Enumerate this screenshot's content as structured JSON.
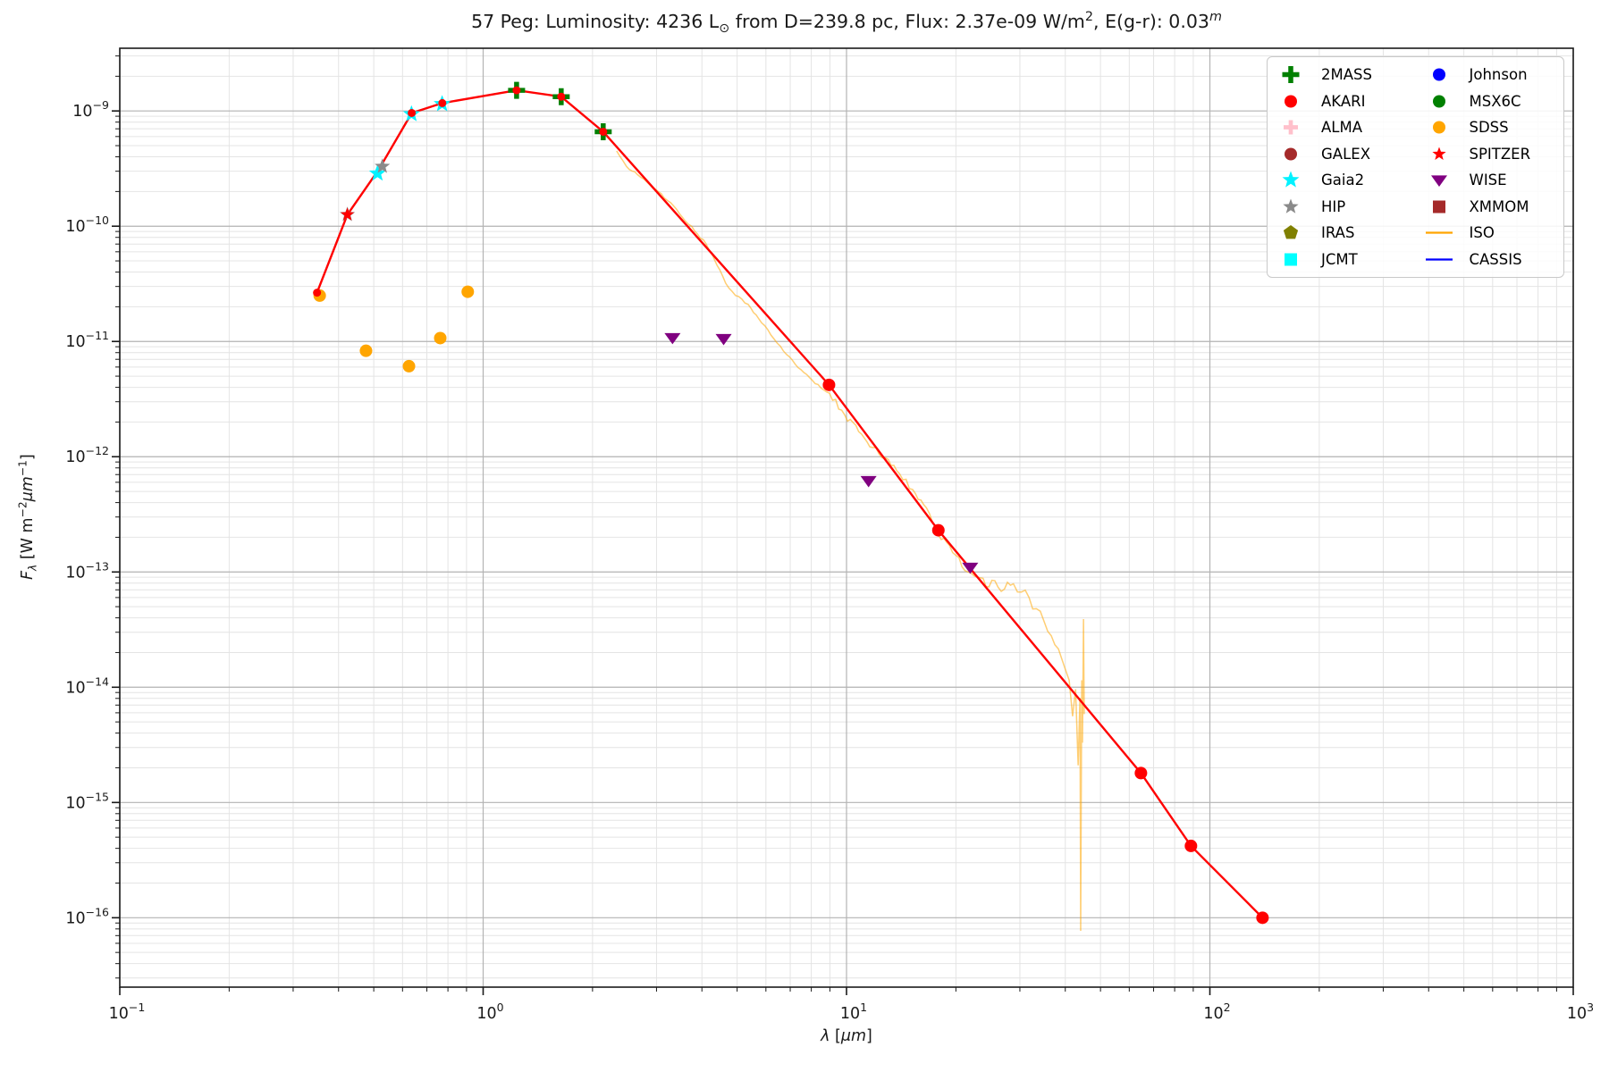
{
  "chart_data": {
    "type": "scatter",
    "title": "57 Peg:  Luminosity: 4236 L_sun from D=239.8 pc, Flux: 2.37e-09 W/m^2, E(g-r): 0.03^m",
    "title_segments": [
      {
        "t": "57 Peg:  Luminosity: 4236 L",
        "s": ""
      },
      {
        "t": "⊙",
        "s": "sub"
      },
      {
        "t": " from D=239.8 pc, Flux: 2.37e-09 W/m",
        "s": ""
      },
      {
        "t": "2",
        "s": "sup"
      },
      {
        "t": ", E(g-r): 0.03",
        "s": ""
      },
      {
        "t": "m",
        "s": "supi"
      }
    ],
    "xlabel": "lambda [micron]",
    "xlabel_segments": [
      {
        "t": "λ",
        "s": "i"
      },
      {
        "t": " [",
        "s": ""
      },
      {
        "t": "μm",
        "s": "i"
      },
      {
        "t": "]",
        "s": ""
      }
    ],
    "ylabel": "F_lambda [W m^-2 um^-1]",
    "ylabel_segments": [
      {
        "t": "F",
        "s": "i"
      },
      {
        "t": "λ",
        "s": "subi"
      },
      {
        "t": " [W m",
        "s": ""
      },
      {
        "t": "−2",
        "s": "sup"
      },
      {
        "t": "μm",
        "s": "i"
      },
      {
        "t": "−1",
        "s": "sup"
      },
      {
        "t": "]",
        "s": ""
      }
    ],
    "xscale": "log",
    "yscale": "log",
    "xlim": [
      0.1,
      1000
    ],
    "ylim": [
      2.5e-17,
      3.5e-09
    ],
    "x_tick_exponents": [
      -1,
      0,
      1,
      2,
      3
    ],
    "y_tick_exponents": [
      -9,
      -10,
      -11,
      -12,
      -13,
      -14,
      -15,
      -16
    ],
    "grid": "both",
    "legend_position": "upper right",
    "legend_columns": [
      [
        "2MASS",
        "AKARI",
        "ALMA",
        "GALEX",
        "Gaia2",
        "HIP",
        "IRAS",
        "JCMT"
      ],
      [
        "Johnson",
        "MSX6C",
        "SDSS",
        "SPITZER",
        "WISE",
        "XMMOM",
        "ISO",
        "CASSIS"
      ]
    ],
    "colors": {
      "grid_major": "#b3b3b3",
      "grid_minor": "#e4e4e4",
      "spine": "#1a1a1a",
      "model_line": "#ff0000",
      "iso_line": "#ffa500"
    },
    "series": [
      {
        "name": "model-fit",
        "kind": "line",
        "color": "#ff0000",
        "width": 2.4,
        "in_legend": false,
        "points": [
          [
            0.349,
            2.65e-11
          ],
          [
            0.423,
            1.26e-10
          ],
          [
            0.516,
            3.1e-10
          ],
          [
            0.636,
            9.6e-10
          ],
          [
            0.772,
            1.17e-09
          ],
          [
            1.236,
            1.51e-09
          ],
          [
            1.64,
            1.33e-09
          ],
          [
            2.14,
            6.6e-10
          ],
          [
            8.95,
            4.2e-12
          ],
          [
            17.9,
            2.3e-13
          ],
          [
            64.6,
            1.8e-15
          ],
          [
            88.7,
            4.2e-16
          ],
          [
            139.6,
            1e-16
          ]
        ]
      },
      {
        "name": "model-points",
        "kind": "scatter",
        "marker": "circle",
        "color": "#ff0000",
        "size": 9,
        "in_legend": false,
        "points": [
          [
            0.349,
            2.65e-11
          ],
          [
            0.636,
            9.6e-10
          ],
          [
            0.772,
            1.17e-09
          ],
          [
            1.236,
            1.51e-09
          ],
          [
            1.64,
            1.33e-09
          ],
          [
            2.14,
            6.6e-10
          ]
        ]
      },
      {
        "name": "2MASS",
        "kind": "scatter",
        "marker": "plus",
        "color": "#008000",
        "size": 19,
        "points": [
          [
            1.236,
            1.51e-09
          ],
          [
            1.64,
            1.33e-09
          ],
          [
            2.14,
            6.6e-10
          ]
        ]
      },
      {
        "name": "AKARI",
        "kind": "scatter",
        "marker": "circle",
        "color": "#ff0000",
        "size": 14,
        "points": [
          [
            8.95,
            4.2e-12
          ],
          [
            17.9,
            2.3e-13
          ],
          [
            64.6,
            1.8e-15
          ],
          [
            88.7,
            4.2e-16
          ],
          [
            139.6,
            1e-16
          ]
        ]
      },
      {
        "name": "ALMA",
        "kind": "scatter",
        "marker": "plus",
        "color": "#ffc0cb",
        "size": 16,
        "points": []
      },
      {
        "name": "GALEX",
        "kind": "scatter",
        "marker": "circle",
        "color": "#a52a2a",
        "size": 14,
        "points": []
      },
      {
        "name": "Gaia2",
        "kind": "scatter",
        "marker": "star",
        "color": "#00f2ff",
        "size": 20,
        "points": [
          [
            0.512,
            2.87e-10
          ],
          [
            0.635,
            9.4e-10
          ],
          [
            0.771,
            1.15e-09
          ]
        ]
      },
      {
        "name": "HIP",
        "kind": "scatter",
        "marker": "star",
        "color": "#8a8a8a",
        "size": 18,
        "points": [
          [
            0.423,
            1.26e-10
          ],
          [
            0.528,
            3.3e-10
          ]
        ]
      },
      {
        "name": "IRAS",
        "kind": "scatter",
        "marker": "pentagon",
        "color": "#808000",
        "size": 17,
        "points": []
      },
      {
        "name": "JCMT",
        "kind": "scatter",
        "marker": "square",
        "color": "#00ffff",
        "size": 14,
        "points": []
      },
      {
        "name": "Johnson",
        "kind": "scatter",
        "marker": "circle",
        "color": "#0000ff",
        "size": 14,
        "points": []
      },
      {
        "name": "MSX6C",
        "kind": "scatter",
        "marker": "circle",
        "color": "#008000",
        "size": 14,
        "points": []
      },
      {
        "name": "SDSS",
        "kind": "scatter",
        "marker": "circle",
        "color": "#ffa500",
        "size": 14,
        "points": [
          [
            0.355,
            2.5e-11
          ],
          [
            0.476,
            8.3e-12
          ],
          [
            0.625,
            6.1e-12
          ],
          [
            0.762,
            1.07e-11
          ],
          [
            0.907,
            2.7e-11
          ]
        ]
      },
      {
        "name": "SPITZER",
        "kind": "scatter",
        "marker": "star",
        "color": "#ff0000",
        "size": 16,
        "points": [
          [
            0.423,
            1.26e-10
          ]
        ]
      },
      {
        "name": "WISE",
        "kind": "scatter",
        "marker": "triangle-down",
        "color": "#800080",
        "size": 17,
        "points": [
          [
            3.32,
            1.08e-11
          ],
          [
            4.59,
            1.06e-11
          ],
          [
            11.5,
            6.2e-13
          ],
          [
            21.9,
            1.1e-13
          ]
        ]
      },
      {
        "name": "XMMOM",
        "kind": "scatter",
        "marker": "square",
        "color": "#a52a2a",
        "size": 14,
        "points": []
      },
      {
        "name": "ISO",
        "kind": "line",
        "color": "#ffa500",
        "width": 1.5,
        "opacity": 0.55,
        "noisy": true,
        "points": [
          [
            2.33,
            4.5e-10
          ],
          [
            2.48,
            3.3e-10
          ],
          [
            2.66,
            2.8e-10
          ],
          [
            2.83,
            2.4e-10
          ],
          [
            3.03,
            2e-10
          ],
          [
            3.28,
            1.6e-10
          ],
          [
            3.53,
            1.2e-10
          ],
          [
            3.82,
            9.1e-11
          ],
          [
            4.11,
            7e-11
          ],
          [
            4.4,
            4.6e-11
          ],
          [
            4.65,
            3.2e-11
          ],
          [
            4.95,
            2.5e-11
          ],
          [
            5.36,
            2.1e-11
          ],
          [
            5.84,
            1.45e-11
          ],
          [
            6.32,
            1.05e-11
          ],
          [
            6.84,
            7.7e-12
          ],
          [
            7.49,
            5.7e-12
          ],
          [
            8.2,
            4.3e-12
          ],
          [
            8.98,
            3.55e-12
          ],
          [
            9.89,
            2.3e-12
          ],
          [
            10.8,
            1.65e-12
          ],
          [
            11.8,
            1.2e-12
          ],
          [
            12.8,
            9.8e-13
          ],
          [
            14.0,
            7.1e-13
          ],
          [
            15.2,
            5.2e-13
          ],
          [
            16.6,
            3.6e-13
          ],
          [
            17.9,
            2.1e-13
          ],
          [
            19.2,
            1.7e-13
          ],
          [
            20.4,
            1.33e-13
          ],
          [
            21.6,
            1e-13
          ],
          [
            22.9,
            9e-14
          ],
          [
            24.2,
            7.5e-14
          ],
          [
            25.6,
            8.4e-14
          ],
          [
            27.2,
            7.1e-14
          ],
          [
            28.8,
            7.9e-14
          ],
          [
            30.3,
            6.7e-14
          ],
          [
            31.8,
            6e-14
          ],
          [
            33.3,
            4.8e-14
          ],
          [
            35.0,
            3.7e-14
          ],
          [
            36.6,
            2.8e-14
          ],
          [
            38.3,
            2.15e-14
          ],
          [
            39.8,
            1.5e-14
          ],
          [
            41.0,
            1.15e-14
          ],
          [
            41.9,
            5.6e-15
          ],
          [
            42.7,
            9.6e-15
          ],
          [
            43.4,
            2.1e-15
          ],
          [
            43.9,
            8.1e-15
          ],
          [
            44.1,
            7.7e-17
          ],
          [
            44.4,
            1.15e-14
          ],
          [
            44.6,
            3.3e-15
          ],
          [
            44.9,
            3.9e-14
          ],
          [
            45.1,
            5.85e-15
          ]
        ]
      },
      {
        "name": "CASSIS",
        "kind": "line",
        "color": "#0000ff",
        "width": 1.5,
        "points": []
      }
    ]
  }
}
